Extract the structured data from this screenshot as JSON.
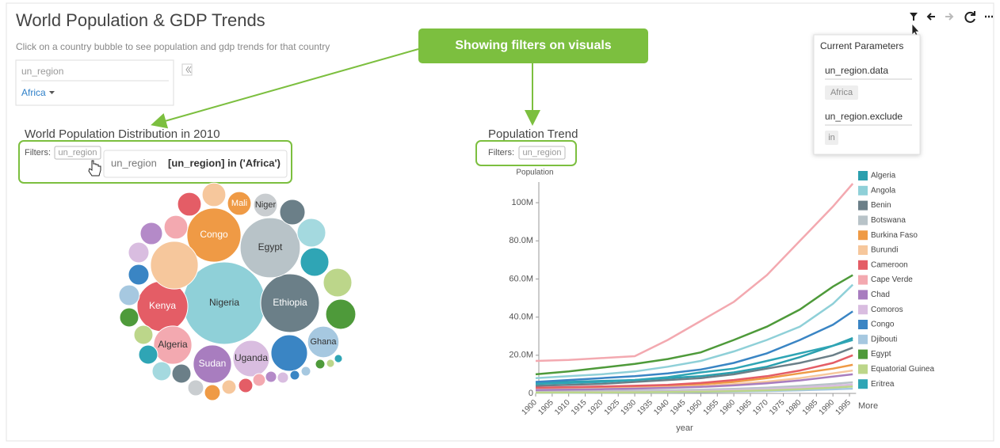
{
  "header": {
    "title": "World Population & GDP Trends",
    "subtitle": "Click on a country bubble to see population and gdp trends for that country"
  },
  "filter_widget": {
    "label": "un_region",
    "value": "Africa"
  },
  "callout": "Showing filters on visuals",
  "parameters": {
    "title": "Current Parameters",
    "items": [
      {
        "name": "un_region.data",
        "value": "Africa"
      },
      {
        "name": "un_region.exclude",
        "value": "in"
      }
    ]
  },
  "chart_data": [
    {
      "type": "bubble",
      "title": "World Population Distribution in 2010",
      "filters_label": "Filters:",
      "filter_tag": "un_region",
      "tooltip": {
        "field": "un_region",
        "expression": "[un_region] in ('Africa')"
      },
      "categories": [
        "Nigeria",
        "Ethiopia",
        "Egypt",
        "Congo",
        "Kenya",
        "Algeria",
        "Sudan",
        "Uganda",
        "Ghana",
        "Mali",
        "Niger",
        null,
        null,
        null,
        null,
        null,
        null,
        null,
        null,
        null,
        null,
        null,
        null,
        null,
        null,
        null,
        null,
        null,
        null,
        null,
        null,
        null,
        null,
        null,
        null,
        null,
        null,
        null,
        null,
        null,
        null,
        null
      ],
      "values": [
        158000000,
        80000000,
        84000000,
        68000000,
        60000000,
        34000000,
        34000000,
        31000000,
        23000000,
        13000000,
        13000000,
        53000000,
        13000000,
        13000000,
        15000000,
        19000000,
        19000000,
        19000000,
        21000000,
        31000000,
        13000000,
        11500000,
        9900000,
        9900000,
        9900000,
        8400000,
        8400000,
        8400000,
        8400000,
        8400000,
        5800000,
        5800000,
        4700000,
        4700000,
        3700000,
        2900000,
        2900000,
        2100000,
        2100000,
        2100000,
        1500000,
        1500000
      ],
      "colors": [
        "#8fd0d8",
        "#6b7f88",
        "#b8c3c8",
        "#ef9a45",
        "#e45d66",
        "#f3a9b0",
        "#a87dbf",
        "#d9bde0",
        "#a6c8e0",
        "#ef9a45",
        "#c9cdd0",
        "#f6c79c",
        "#f6c79c",
        "#e45d66",
        "#6b7f88",
        "#a4d9df",
        "#2fa5b5",
        "#bcd68a",
        "#4e9a3a",
        "#3a85c4",
        "#f3a9b0",
        "#b48ac8",
        "#d9bde0",
        "#3a85c4",
        "#a6c8e0",
        "#4e9a3a",
        "#bcd68a",
        "#2fa5b5",
        "#a4d9df",
        "#6b7f88",
        "#c9cdd0",
        "#ef9a45",
        "#f6c79c",
        "#e45d66",
        "#f3a9b0",
        "#b48ac8",
        "#d9bde0",
        "#3a85c4",
        "#a6c8e0",
        "#4e9a3a",
        "#bcd68a",
        "#2fa5b5"
      ]
    },
    {
      "type": "line",
      "title": "Population Trend",
      "filters_label": "Filters:",
      "filter_tag": "un_region",
      "y_label": "Population",
      "x_label": "year",
      "legend_more": "More",
      "x": [
        1900,
        1910,
        1920,
        1930,
        1940,
        1950,
        1960,
        1970,
        1980,
        1990,
        1996
      ],
      "xlim": [
        1900,
        1997
      ],
      "xticks": [
        1900,
        1905,
        1910,
        1915,
        1920,
        1925,
        1930,
        1935,
        1940,
        1945,
        1950,
        1955,
        1960,
        1965,
        1970,
        1975,
        1980,
        1985,
        1990,
        1995
      ],
      "ylim": [
        0,
        110000000
      ],
      "yticks": [
        0,
        {
          "value": 20000000,
          "label": "20.0M"
        },
        {
          "value": 40000000,
          "label": "40.0M"
        },
        {
          "value": 60000000,
          "label": "60.0M"
        },
        {
          "value": 80000000,
          "label": "80.0M"
        },
        {
          "value": 100000000,
          "label": "100M"
        }
      ],
      "series": [
        {
          "name": "Algeria",
          "color": "#2a9fae",
          "values": [
            5500000,
            6000000,
            6500000,
            7000000,
            8000000,
            9000000,
            11000000,
            14000000,
            19000000,
            25000000,
            29000000
          ]
        },
        {
          "name": "Angola",
          "color": "#8fd0d8",
          "values": [
            8000000,
            9000000,
            10000000,
            11500000,
            14000000,
            17000000,
            22000000,
            28000000,
            35000000,
            47000000,
            57000000
          ]
        },
        {
          "name": "Benin",
          "color": "#6b7f88",
          "values": [
            4000000,
            4500000,
            5000000,
            6000000,
            7000000,
            8000000,
            10000000,
            13000000,
            16000000,
            20000000,
            24000000
          ]
        },
        {
          "name": "Botswana",
          "color": "#b8c3c8",
          "values": [
            1000000,
            1100000,
            1200000,
            1400000,
            1600000,
            1900000,
            2400000,
            3000000,
            3900000,
            5000000,
            5800000
          ]
        },
        {
          "name": "Burkina Faso",
          "color": "#ef9a45",
          "values": [
            2500000,
            2800000,
            3100000,
            3500000,
            4000000,
            4800000,
            6000000,
            8000000,
            10500000,
            13000000,
            15000000
          ]
        },
        {
          "name": "Burundi",
          "color": "#f6c79c",
          "values": [
            2000000,
            2200000,
            2500000,
            2800000,
            3200000,
            3800000,
            4800000,
            6200000,
            8000000,
            10500000,
            12000000
          ]
        },
        {
          "name": "Cameroon",
          "color": "#e45d66",
          "values": [
            3000000,
            3300000,
            3600000,
            4000000,
            4500000,
            5500000,
            7000000,
            9000000,
            12000000,
            16000000,
            20000000
          ]
        },
        {
          "name": "Cape Verde",
          "color": "#f3a9b0",
          "values": [
            17000000,
            17500000,
            18500000,
            19500000,
            28000000,
            38000000,
            48000000,
            62000000,
            80000000,
            98000000,
            110000000
          ]
        },
        {
          "name": "Chad",
          "color": "#a87dbf",
          "values": [
            1800000,
            2000000,
            2200000,
            2500000,
            2900000,
            3400000,
            4200000,
            5300000,
            6800000,
            8800000,
            10000000
          ]
        },
        {
          "name": "Comoros",
          "color": "#d9bde0",
          "values": [
            500000,
            600000,
            700000,
            800000,
            1000000,
            1300000,
            1700000,
            2200000,
            3000000,
            4000000,
            4600000
          ]
        },
        {
          "name": "Congo",
          "color": "#3a85c4",
          "values": [
            6000000,
            7000000,
            8000000,
            9000000,
            10500000,
            12500000,
            16000000,
            21000000,
            28000000,
            36000000,
            43000000
          ]
        },
        {
          "name": "Djibouti",
          "color": "#a6c8e0",
          "values": [
            300000,
            350000,
            400000,
            450000,
            550000,
            700000,
            900000,
            1200000,
            1600000,
            2100000,
            2500000
          ]
        },
        {
          "name": "Egypt",
          "color": "#4e9a3a",
          "values": [
            10000000,
            11500000,
            13500000,
            15500000,
            18000000,
            21500000,
            28000000,
            35000000,
            44000000,
            56000000,
            62000000
          ]
        },
        {
          "name": "Equatorial Guinea",
          "color": "#bcd68a",
          "values": [
            400000,
            450000,
            500000,
            600000,
            700000,
            900000,
            1200000,
            1600000,
            2200000,
            3000000,
            3600000
          ]
        },
        {
          "name": "Eritrea",
          "color": "#2fa5b5",
          "values": [
            5000000,
            5500000,
            6000000,
            7000000,
            8500000,
            11000000,
            13000000,
            17000000,
            21000000,
            25000000,
            28000000
          ]
        }
      ]
    }
  ]
}
